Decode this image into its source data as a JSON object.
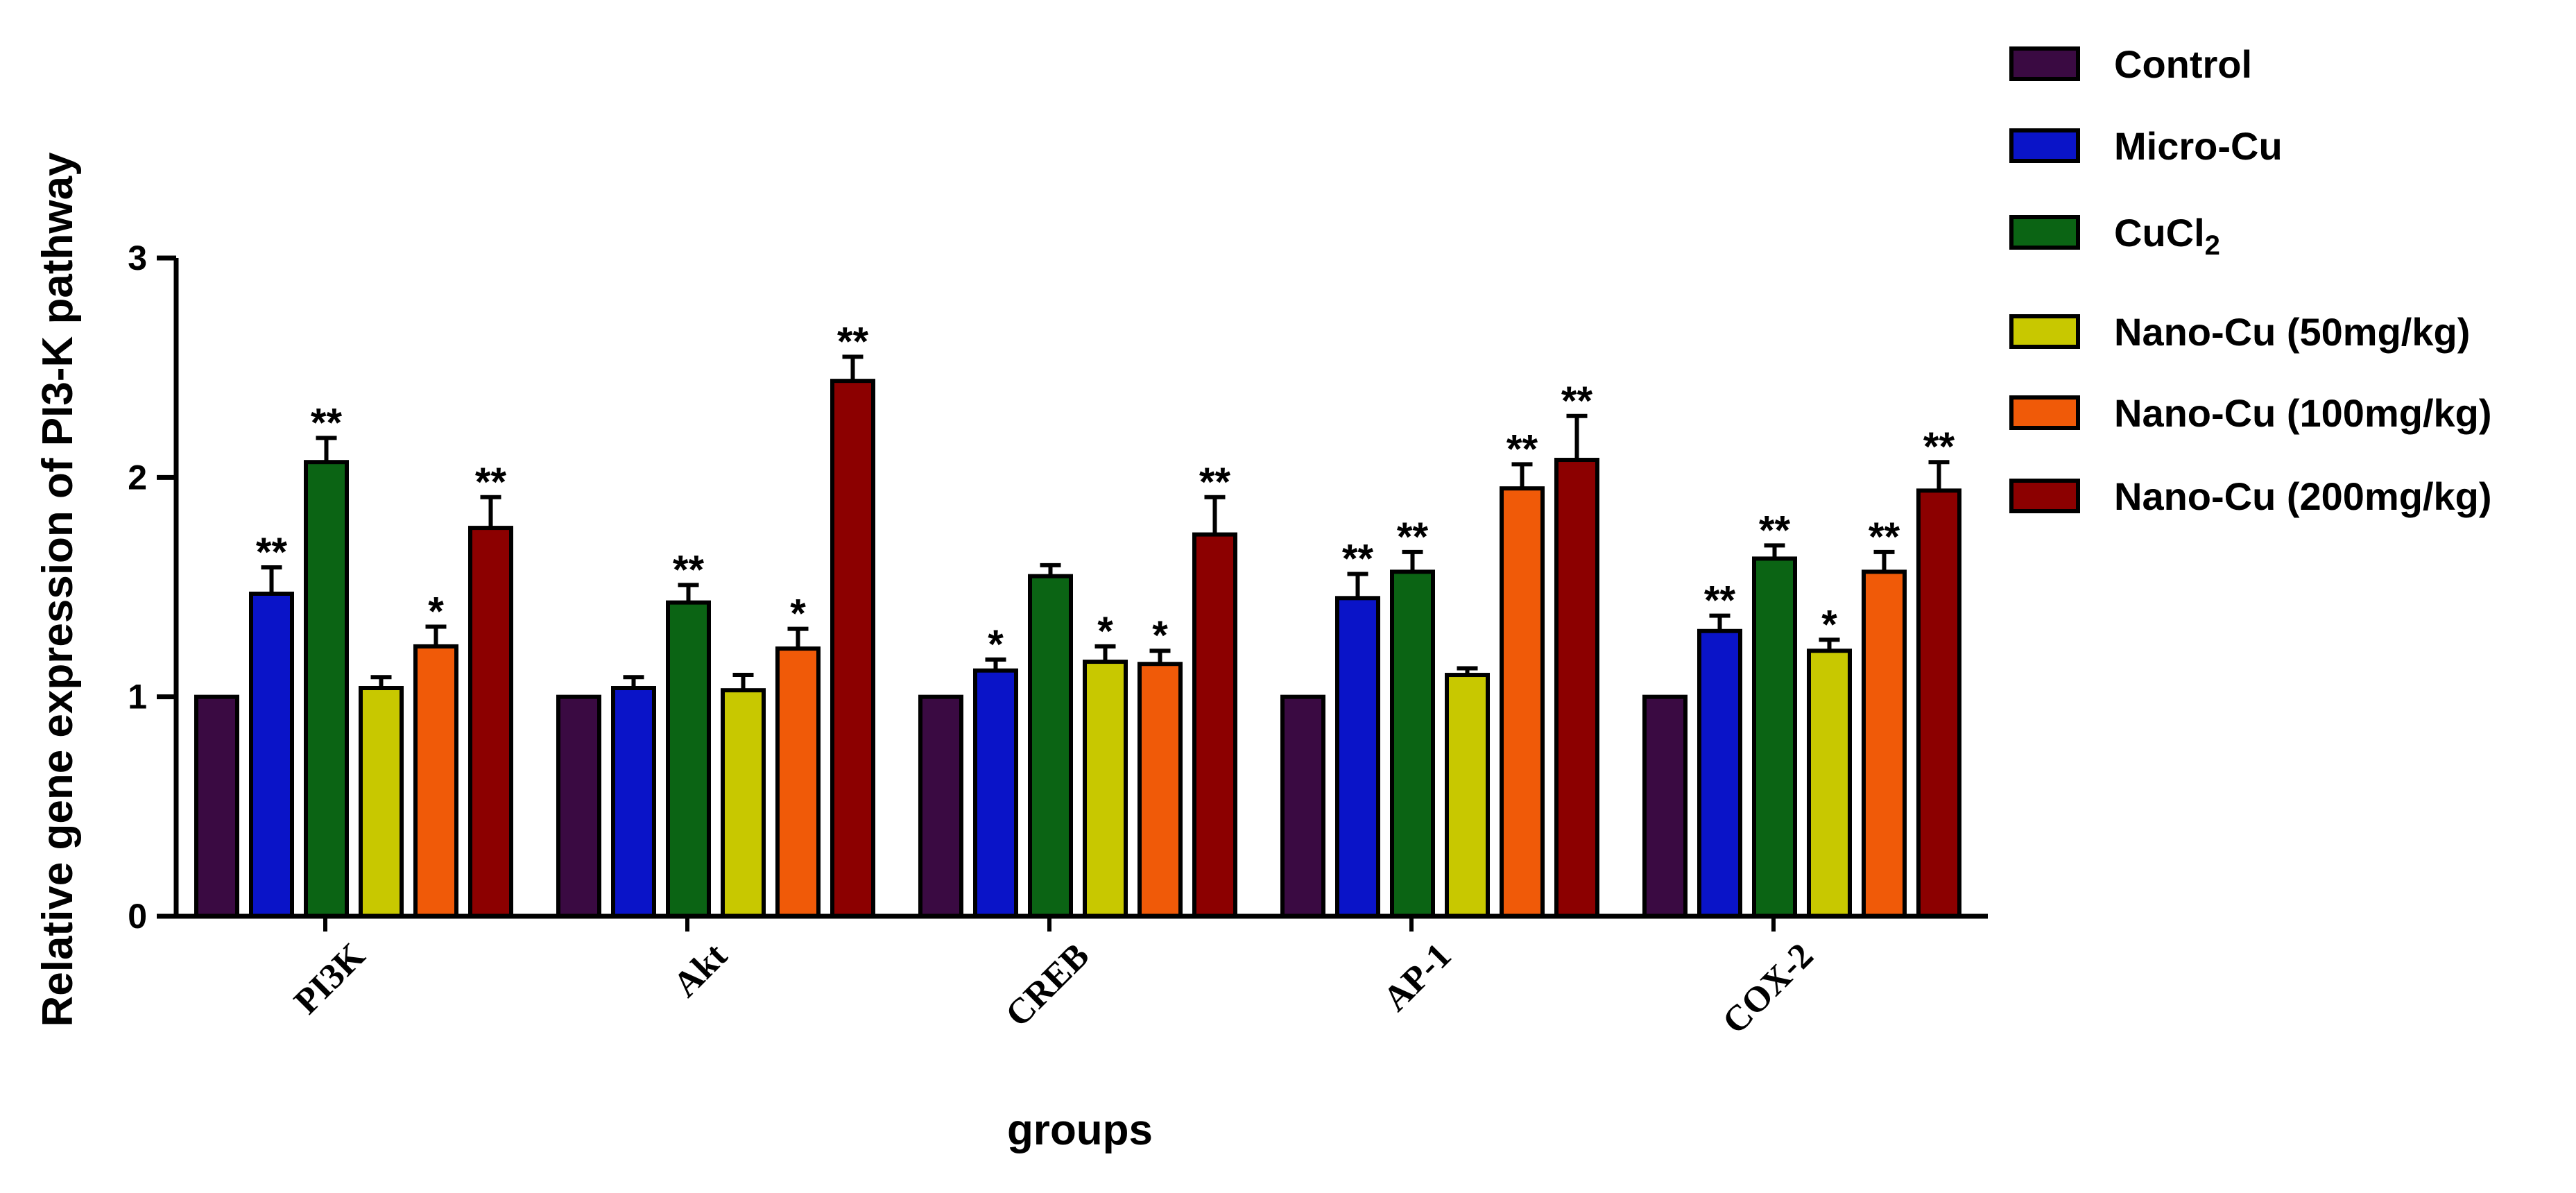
{
  "chart_data": {
    "type": "bar",
    "title": "",
    "xlabel": "groups",
    "ylabel": "Relative gene expression of PI3-K pathway",
    "ylim": [
      0,
      3
    ],
    "yticks": [
      0,
      1,
      2,
      3
    ],
    "grid": false,
    "legend_position": "top-right",
    "categories": [
      "PI3K",
      "Akt",
      "CREB",
      "AP-1",
      "COX-2"
    ],
    "series": [
      {
        "name": "Control",
        "color": "#3a0a42",
        "values": [
          1.0,
          1.0,
          1.0,
          1.0,
          1.0
        ],
        "errors": [
          0,
          0,
          0,
          0,
          0
        ],
        "significance": [
          "",
          "",
          "",
          "",
          ""
        ]
      },
      {
        "name": "Micro-Cu",
        "color": "#0a14c8",
        "values": [
          1.47,
          1.04,
          1.12,
          1.45,
          1.3
        ],
        "errors": [
          0.12,
          0.05,
          0.05,
          0.11,
          0.07
        ],
        "significance": [
          "**",
          "",
          "*",
          "**",
          "**"
        ]
      },
      {
        "name": "CuCl",
        "name_subscript": "2",
        "color": "#0b6414",
        "values": [
          2.07,
          1.43,
          1.55,
          1.57,
          1.63
        ],
        "errors": [
          0.11,
          0.08,
          0.05,
          0.09,
          0.06
        ],
        "significance": [
          "**",
          "**",
          "",
          "**",
          "**"
        ]
      },
      {
        "name": "Nano-Cu (50mg/kg)",
        "color": "#c8c800",
        "values": [
          1.04,
          1.03,
          1.16,
          1.1,
          1.21
        ],
        "errors": [
          0.05,
          0.07,
          0.07,
          0.03,
          0.05
        ],
        "significance": [
          "",
          "",
          "*",
          "",
          "*"
        ]
      },
      {
        "name": "Nano-Cu (100mg/kg)",
        "color": "#f05a08",
        "values": [
          1.23,
          1.22,
          1.15,
          1.95,
          1.57
        ],
        "errors": [
          0.09,
          0.09,
          0.06,
          0.11,
          0.09
        ],
        "significance": [
          "*",
          "*",
          "*",
          "**",
          "**"
        ]
      },
      {
        "name": "Nano-Cu (200mg/kg)",
        "color": "#8c0000",
        "values": [
          1.77,
          2.44,
          1.74,
          2.08,
          1.94
        ],
        "errors": [
          0.14,
          0.11,
          0.17,
          0.2,
          0.13
        ],
        "significance": [
          "**",
          "**",
          "**",
          "**",
          "**"
        ]
      }
    ]
  }
}
